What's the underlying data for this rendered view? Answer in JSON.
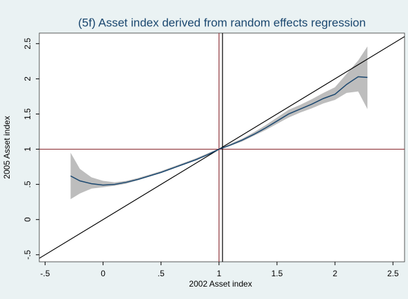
{
  "chart_data": {
    "type": "line",
    "title": "(5f) Asset index derived from random effects regression",
    "x_label": "2002 Asset index",
    "y_label": "2005 Asset index",
    "x": [
      -0.28,
      -0.2,
      -0.1,
      0,
      0.1,
      0.2,
      0.3,
      0.4,
      0.5,
      0.6,
      0.7,
      0.8,
      0.9,
      1.0,
      1.1,
      1.2,
      1.3,
      1.4,
      1.5,
      1.6,
      1.7,
      1.8,
      1.9,
      2.0,
      2.1,
      2.2,
      2.28
    ],
    "series": [
      {
        "color": "#1a476f",
        "values": [
          0.62,
          0.55,
          0.51,
          0.49,
          0.5,
          0.53,
          0.57,
          0.62,
          0.67,
          0.73,
          0.79,
          0.85,
          0.92,
          1.0,
          1.06,
          1.13,
          1.21,
          1.3,
          1.4,
          1.5,
          1.57,
          1.64,
          1.72,
          1.78,
          1.92,
          2.03,
          2.02
        ],
        "lower": [
          0.29,
          0.37,
          0.44,
          0.46,
          0.48,
          0.51,
          0.56,
          0.61,
          0.66,
          0.72,
          0.78,
          0.84,
          0.91,
          0.99,
          1.05,
          1.11,
          1.19,
          1.27,
          1.36,
          1.45,
          1.52,
          1.58,
          1.65,
          1.7,
          1.8,
          1.82,
          1.57
        ],
        "upper": [
          0.95,
          0.72,
          0.6,
          0.55,
          0.53,
          0.55,
          0.59,
          0.64,
          0.69,
          0.75,
          0.81,
          0.87,
          0.94,
          1.01,
          1.08,
          1.15,
          1.24,
          1.34,
          1.45,
          1.56,
          1.63,
          1.71,
          1.8,
          1.88,
          2.07,
          2.26,
          2.46
        ],
        "band_color": "#bdbdbd"
      }
    ],
    "reference_lines": [
      {
        "axis": "x",
        "value": 1,
        "color": "#90353b"
      },
      {
        "axis": "y",
        "value": 1,
        "color": "#90353b"
      },
      {
        "axis": "x",
        "value": 1.03,
        "color": "#000000"
      }
    ],
    "diagonal_color": "#000000",
    "xlim": [
      -0.55,
      2.6
    ],
    "ylim": [
      -0.6,
      2.65
    ],
    "xticks": [
      {
        "value": -0.5,
        "label": "-.5"
      },
      0,
      {
        "value": 0.5,
        "label": ".5"
      },
      1,
      {
        "value": 1.5,
        "label": "1.5"
      },
      2,
      {
        "value": 2.5,
        "label": "2.5"
      }
    ],
    "yticks": [
      {
        "value": -0.5,
        "label": "-.5"
      },
      0,
      {
        "value": 0.5,
        "label": ".5"
      },
      1,
      {
        "value": 1.5,
        "label": "1.5"
      },
      2,
      {
        "value": 2.5,
        "label": "2.5"
      }
    ]
  }
}
